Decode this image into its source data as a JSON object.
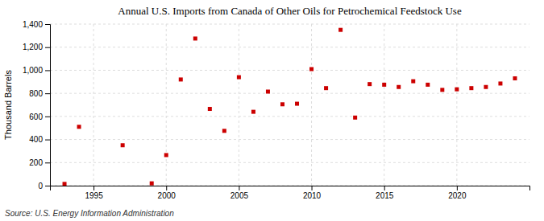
{
  "chart_data": {
    "type": "scatter",
    "title": "Annual U.S. Imports from Canada of Other Oils for Petrochemical Feedstock Use",
    "ylabel": "Thousand Barrels",
    "source": "Source: U.S. Energy Information Administration",
    "x": [
      1993,
      1994,
      1997,
      1999,
      2000,
      2001,
      2002,
      2003,
      2004,
      2005,
      2006,
      2007,
      2008,
      2009,
      2010,
      2011,
      2012,
      2013,
      2014,
      2015,
      2016,
      2017,
      2018,
      2019,
      2020,
      2021,
      2022,
      2023,
      2024
    ],
    "values": [
      15,
      510,
      350,
      20,
      265,
      920,
      1275,
      665,
      475,
      940,
      640,
      815,
      705,
      710,
      1010,
      845,
      1350,
      590,
      880,
      875,
      855,
      905,
      875,
      830,
      835,
      845,
      855,
      885,
      930
    ],
    "color": "#cc0000",
    "marker": "square",
    "xlim": [
      1992,
      2025
    ],
    "ylim": [
      0,
      1400
    ],
    "xticks": [
      1995,
      2000,
      2005,
      2010,
      2015,
      2020
    ],
    "yticks": [
      0,
      200,
      400,
      600,
      800,
      {
        "value": 1000,
        "label": "1,000"
      },
      {
        "value": 1200,
        "label": "1,200"
      },
      {
        "value": 1400,
        "label": "1,400"
      }
    ],
    "grid": true
  }
}
